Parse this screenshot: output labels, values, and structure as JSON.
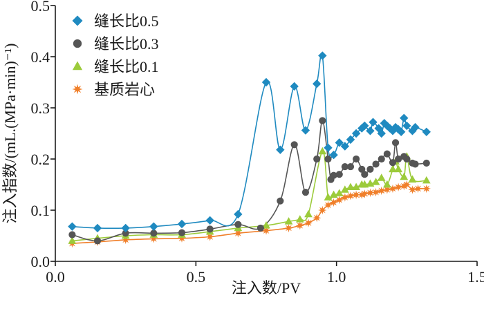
{
  "chart_data": {
    "type": "line",
    "title": "",
    "xlabel": "注入数/PV",
    "ylabel": "注入指数/(mL.(MPa·min)⁻¹)",
    "xlim": [
      0.0,
      1.5
    ],
    "ylim": [
      0.0,
      0.5
    ],
    "xticks": [
      "0.0",
      "0.5",
      "1.0",
      "1.5"
    ],
    "yticks": [
      "0.0",
      "0.1",
      "0.2",
      "0.3",
      "0.4",
      "0.5"
    ],
    "grid": false,
    "legend_position": "top-left",
    "series": [
      {
        "name": "缝长比0.5",
        "color": "#1f8ac0",
        "marker": "diamond",
        "x": [
          0.06,
          0.15,
          0.25,
          0.35,
          0.45,
          0.55,
          0.65,
          0.75,
          0.8,
          0.85,
          0.89,
          0.93,
          0.95,
          0.97,
          0.99,
          1.01,
          1.03,
          1.05,
          1.07,
          1.09,
          1.1,
          1.12,
          1.13,
          1.15,
          1.16,
          1.17,
          1.18,
          1.19,
          1.2,
          1.21,
          1.22,
          1.23,
          1.24,
          1.25,
          1.27,
          1.28,
          1.32
        ],
        "y": [
          0.068,
          0.065,
          0.065,
          0.068,
          0.073,
          0.08,
          0.092,
          0.35,
          0.218,
          0.342,
          0.256,
          0.347,
          0.402,
          0.222,
          0.208,
          0.232,
          0.225,
          0.238,
          0.25,
          0.26,
          0.265,
          0.255,
          0.272,
          0.26,
          0.25,
          0.27,
          0.265,
          0.26,
          0.255,
          0.262,
          0.258,
          0.253,
          0.28,
          0.265,
          0.255,
          0.262,
          0.253
        ]
      },
      {
        "name": "缝长比0.3",
        "color": "#555555",
        "marker": "circle",
        "x": [
          0.06,
          0.15,
          0.25,
          0.35,
          0.45,
          0.55,
          0.65,
          0.73,
          0.8,
          0.85,
          0.89,
          0.93,
          0.95,
          0.97,
          0.98,
          0.99,
          1.01,
          1.03,
          1.05,
          1.07,
          1.09,
          1.1,
          1.12,
          1.14,
          1.16,
          1.18,
          1.2,
          1.21,
          1.22,
          1.24,
          1.25,
          1.27,
          1.28,
          1.32
        ],
        "y": [
          0.052,
          0.04,
          0.055,
          0.055,
          0.056,
          0.063,
          0.072,
          0.065,
          0.118,
          0.228,
          0.135,
          0.2,
          0.275,
          0.2,
          0.16,
          0.168,
          0.17,
          0.185,
          0.185,
          0.2,
          0.18,
          0.17,
          0.18,
          0.19,
          0.2,
          0.21,
          0.193,
          0.232,
          0.2,
          0.205,
          0.2,
          0.192,
          0.19,
          0.192
        ]
      },
      {
        "name": "缝长比0.1",
        "color": "#9ccb3b",
        "marker": "triangle",
        "x": [
          0.06,
          0.15,
          0.25,
          0.35,
          0.45,
          0.55,
          0.65,
          0.75,
          0.83,
          0.87,
          0.9,
          0.95,
          0.97,
          0.99,
          1.01,
          1.03,
          1.05,
          1.07,
          1.09,
          1.1,
          1.12,
          1.14,
          1.16,
          1.18,
          1.2,
          1.21,
          1.22,
          1.24,
          1.25,
          1.27,
          1.32
        ],
        "y": [
          0.04,
          0.045,
          0.05,
          0.052,
          0.052,
          0.058,
          0.065,
          0.07,
          0.078,
          0.082,
          0.092,
          0.215,
          0.125,
          0.13,
          0.133,
          0.14,
          0.145,
          0.145,
          0.15,
          0.15,
          0.152,
          0.155,
          0.163,
          0.15,
          0.18,
          0.195,
          0.18,
          0.165,
          0.205,
          0.16,
          0.158
        ]
      },
      {
        "name": "基质岩心",
        "color": "#f07f2a",
        "marker": "star",
        "x": [
          0.06,
          0.15,
          0.25,
          0.35,
          0.45,
          0.55,
          0.65,
          0.75,
          0.83,
          0.87,
          0.9,
          0.93,
          0.95,
          0.97,
          0.99,
          1.01,
          1.03,
          1.05,
          1.07,
          1.09,
          1.1,
          1.12,
          1.14,
          1.16,
          1.18,
          1.2,
          1.22,
          1.24,
          1.25,
          1.27,
          1.29,
          1.32
        ],
        "y": [
          0.035,
          0.038,
          0.042,
          0.044,
          0.045,
          0.048,
          0.055,
          0.06,
          0.065,
          0.07,
          0.075,
          0.085,
          0.1,
          0.11,
          0.115,
          0.12,
          0.125,
          0.128,
          0.13,
          0.13,
          0.132,
          0.134,
          0.135,
          0.138,
          0.14,
          0.142,
          0.145,
          0.147,
          0.15,
          0.14,
          0.142,
          0.142
        ]
      }
    ]
  }
}
